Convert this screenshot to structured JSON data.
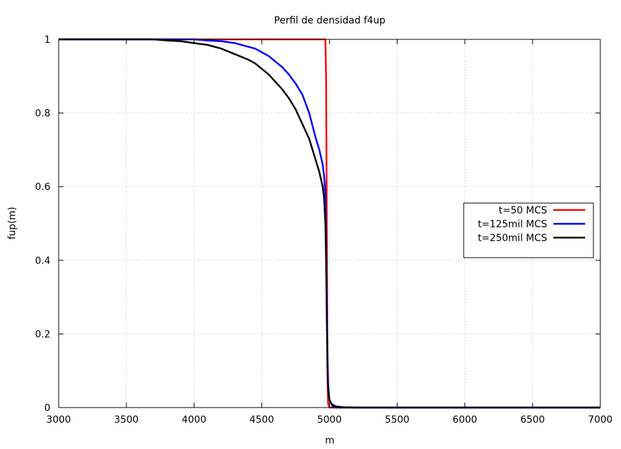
{
  "chart_data": {
    "type": "line",
    "title": "Perfil de densidad f4up",
    "xlabel": "m",
    "ylabel": "fup(m)",
    "xlim": [
      3000,
      7000
    ],
    "ylim": [
      0,
      1
    ],
    "xticks": [
      3000,
      3500,
      4000,
      4500,
      5000,
      5500,
      6000,
      6500,
      7000
    ],
    "yticks": [
      0,
      0.2,
      0.4,
      0.6,
      0.8,
      1
    ],
    "xtick_labels": [
      "3000",
      "3500",
      "4000",
      "4500",
      "5000",
      "5500",
      "6000",
      "6500",
      "7000"
    ],
    "ytick_labels": [
      "0",
      "0.2",
      "0.4",
      "0.6",
      "0.8",
      "1"
    ],
    "grid": true,
    "legend_position": "right",
    "series": [
      {
        "name": "t=50 MCS",
        "color": "#ff0000",
        "x": [
          3000,
          4960,
          4970,
          4975,
          4980,
          4985,
          4990,
          5000,
          7000
        ],
        "y": [
          1,
          1,
          1,
          0.9,
          0.5,
          0.1,
          0.01,
          0,
          0
        ]
      },
      {
        "name": "t=125mil MCS",
        "color": "#0000ff",
        "x": [
          3000,
          4000,
          4100,
          4200,
          4300,
          4400,
          4450,
          4500,
          4550,
          4600,
          4650,
          4700,
          4750,
          4800,
          4850,
          4900,
          4925,
          4950,
          4960,
          4970,
          4975,
          4980,
          4985,
          4990,
          5000,
          5020,
          5050,
          5100,
          7000
        ],
        "y": [
          1,
          1,
          0.997,
          0.995,
          0.99,
          0.98,
          0.975,
          0.965,
          0.955,
          0.94,
          0.925,
          0.905,
          0.88,
          0.85,
          0.8,
          0.73,
          0.7,
          0.66,
          0.63,
          0.58,
          0.45,
          0.3,
          0.15,
          0.06,
          0.02,
          0.005,
          0,
          0,
          0
        ]
      },
      {
        "name": "t=250mil MCS",
        "color": "#000000",
        "x": [
          3000,
          3700,
          3800,
          3900,
          4000,
          4100,
          4200,
          4300,
          4400,
          4450,
          4500,
          4550,
          4600,
          4650,
          4700,
          4750,
          4800,
          4850,
          4900,
          4925,
          4950,
          4960,
          4970,
          4975,
          4980,
          4985,
          4990,
          5000,
          5020,
          5050,
          5100,
          5200,
          7000
        ],
        "y": [
          1,
          1,
          0.997,
          0.995,
          0.99,
          0.985,
          0.975,
          0.96,
          0.945,
          0.935,
          0.92,
          0.905,
          0.885,
          0.865,
          0.84,
          0.81,
          0.77,
          0.73,
          0.67,
          0.64,
          0.6,
          0.57,
          0.5,
          0.4,
          0.25,
          0.12,
          0.05,
          0.02,
          0.008,
          0.003,
          0.001,
          0,
          0
        ]
      }
    ]
  }
}
